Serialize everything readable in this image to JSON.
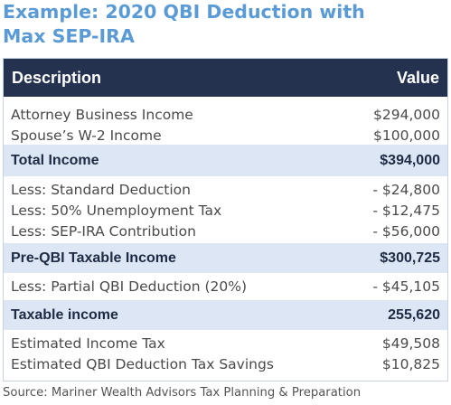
{
  "title": {
    "line1": "Example: 2020 QBI Deduction with",
    "line2": "Max SEP-IRA"
  },
  "table": {
    "header": {
      "description": "Description",
      "value": "Value"
    },
    "income_items": [
      {
        "label": "Attorney Business Income",
        "value": "$294,000"
      },
      {
        "label": "Spouse’s W-2 Income",
        "value": "$100,000"
      }
    ],
    "total_income": {
      "label": "Total Income",
      "value": "$394,000"
    },
    "deduction_items": [
      {
        "label": "Less: Standard Deduction",
        "value": "- $24,800"
      },
      {
        "label": "Less: 50% Unemployment Tax",
        "value": "- $12,475"
      },
      {
        "label": "Less: SEP-IRA Contribution",
        "value": "- $56,000"
      }
    ],
    "pre_qbi": {
      "label": "Pre-QBI Taxable Income",
      "value": "$300,725"
    },
    "qbi_deduction": {
      "label": "Less: Partial QBI Deduction (20%)",
      "value": "- $45,105"
    },
    "taxable_income": {
      "label": "Taxable income",
      "value": "255,620"
    },
    "tax_items": [
      {
        "label": "Estimated Income Tax",
        "value": "$49,508"
      },
      {
        "label": "Estimated QBI Deduction Tax Savings",
        "value": "$10,825"
      }
    ]
  },
  "source": "Source: Mariner Wealth Advisors Tax Planning & Preparation"
}
